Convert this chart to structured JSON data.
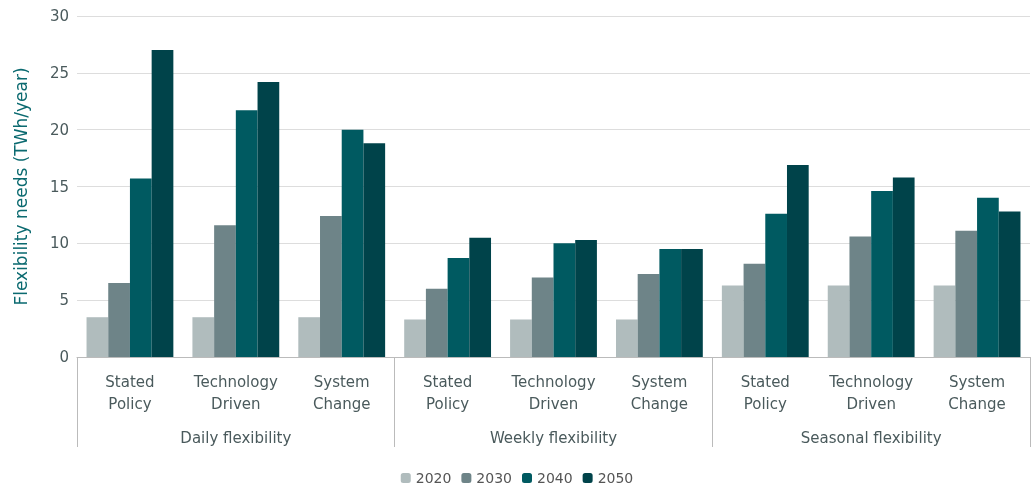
{
  "chart_data": {
    "type": "bar",
    "ylabel": "Flexibility needs (TWh/year)",
    "categories": [
      "Stated Policy",
      "Technology Driven",
      "System Change",
      "Stated Policy",
      "Technology Driven",
      "System Change",
      "Stated Policy",
      "Technology Driven",
      "System Change"
    ],
    "annotations": [
      "Daily flexibility",
      "Weekly flexibility",
      "Seasonal flexibility"
    ],
    "series": [
      {
        "name": "2020",
        "color": "#b0bcbd",
        "values": [
          3.5,
          3.5,
          3.5,
          3.3,
          3.3,
          3.3,
          6.3,
          6.3,
          6.3
        ]
      },
      {
        "name": "2030",
        "color": "#6e8488",
        "values": [
          6.5,
          11.6,
          12.4,
          6.0,
          7.0,
          7.3,
          8.2,
          10.6,
          11.1
        ]
      },
      {
        "name": "2040",
        "color": "#005a61",
        "values": [
          15.7,
          21.7,
          20.0,
          8.7,
          10.0,
          9.5,
          12.6,
          14.6,
          14.0
        ]
      },
      {
        "name": "2050",
        "color": "#00434a",
        "values": [
          27.0,
          24.2,
          18.8,
          10.5,
          10.3,
          9.5,
          16.9,
          15.8,
          12.8
        ]
      }
    ],
    "ylim": [
      0,
      30
    ],
    "yticks": [
      0,
      5,
      10,
      15,
      20,
      25,
      30
    ],
    "grid": "y",
    "legend": "bottom"
  }
}
